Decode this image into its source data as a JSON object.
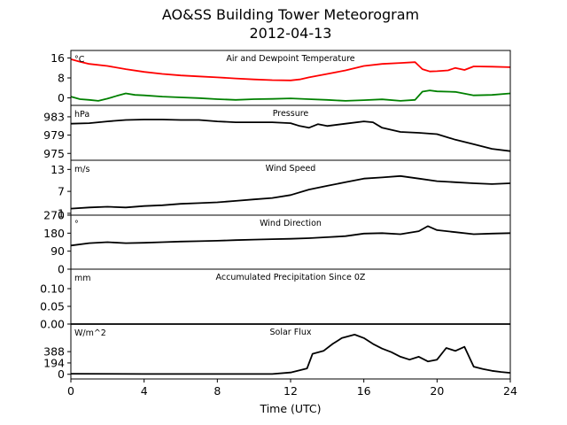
{
  "figure": {
    "title_line1": "AO&SS Building Tower Meteorogram",
    "title_line2": "2012-04-13"
  },
  "chart_data": {
    "type": "line",
    "xlabel": "Time (UTC)",
    "xlim": [
      0,
      24
    ],
    "xticks": [
      0,
      4,
      8,
      12,
      16,
      20,
      24
    ],
    "panels": [
      {
        "id": "temperature",
        "title": "Air and Dewpoint Temperature",
        "unit": "°C",
        "ylim": [
          -3,
          19
        ],
        "yticks": [
          16,
          8,
          0
        ],
        "series": [
          {
            "color": "#ff0000",
            "points": [
              [
                0,
                15.5
              ],
              [
                0.5,
                14.5
              ],
              [
                1,
                13.6
              ],
              [
                2,
                12.8
              ],
              [
                3,
                11.5
              ],
              [
                4,
                10.4
              ],
              [
                5,
                9.6
              ],
              [
                6,
                9.0
              ],
              [
                7,
                8.6
              ],
              [
                8,
                8.2
              ],
              [
                9,
                7.8
              ],
              [
                10,
                7.4
              ],
              [
                11,
                7.1
              ],
              [
                12,
                7.0
              ],
              [
                12.5,
                7.4
              ],
              [
                13,
                8.2
              ],
              [
                14,
                9.6
              ],
              [
                15,
                11.0
              ],
              [
                16,
                12.8
              ],
              [
                17,
                13.6
              ],
              [
                18,
                14.0
              ],
              [
                18.8,
                14.3
              ],
              [
                19.2,
                11.5
              ],
              [
                19.6,
                10.6
              ],
              [
                20,
                10.7
              ],
              [
                20.6,
                11.0
              ],
              [
                21,
                12.0
              ],
              [
                21.5,
                11.2
              ],
              [
                22,
                12.6
              ],
              [
                23,
                12.5
              ],
              [
                24,
                12.3
              ]
            ]
          },
          {
            "color": "#008000",
            "points": [
              [
                0,
                0.5
              ],
              [
                0.5,
                -0.5
              ],
              [
                1,
                -0.8
              ],
              [
                1.5,
                -1.2
              ],
              [
                2,
                -0.3
              ],
              [
                2.5,
                0.8
              ],
              [
                3,
                1.8
              ],
              [
                3.5,
                1.2
              ],
              [
                4,
                1.0
              ],
              [
                5,
                0.5
              ],
              [
                6,
                0.2
              ],
              [
                7,
                -0.1
              ],
              [
                8,
                -0.5
              ],
              [
                9,
                -0.8
              ],
              [
                10,
                -0.5
              ],
              [
                11,
                -0.4
              ],
              [
                12,
                -0.2
              ],
              [
                13,
                -0.5
              ],
              [
                14,
                -0.8
              ],
              [
                15,
                -1.2
              ],
              [
                16,
                -0.9
              ],
              [
                17,
                -0.6
              ],
              [
                18,
                -1.2
              ],
              [
                18.8,
                -0.8
              ],
              [
                19.2,
                2.5
              ],
              [
                19.6,
                3.0
              ],
              [
                20,
                2.6
              ],
              [
                21,
                2.4
              ],
              [
                22,
                1.0
              ],
              [
                23,
                1.2
              ],
              [
                24,
                1.8
              ]
            ]
          }
        ]
      },
      {
        "id": "pressure",
        "title": "Pressure",
        "unit": "hPa",
        "ylim": [
          973.5,
          985.5
        ],
        "yticks": [
          983,
          979,
          975
        ],
        "series": [
          {
            "color": "#000000",
            "points": [
              [
                0,
                981.5
              ],
              [
                1,
                981.6
              ],
              [
                2,
                982.0
              ],
              [
                3,
                982.3
              ],
              [
                4,
                982.4
              ],
              [
                5,
                982.4
              ],
              [
                6,
                982.3
              ],
              [
                7,
                982.3
              ],
              [
                8,
                982.0
              ],
              [
                9,
                981.8
              ],
              [
                10,
                981.8
              ],
              [
                11,
                981.8
              ],
              [
                12,
                981.6
              ],
              [
                12.5,
                981.0
              ],
              [
                13,
                980.6
              ],
              [
                13.5,
                981.4
              ],
              [
                14,
                981.0
              ],
              [
                15,
                981.5
              ],
              [
                16,
                982.0
              ],
              [
                16.5,
                981.8
              ],
              [
                17,
                980.6
              ],
              [
                18,
                979.7
              ],
              [
                19,
                979.5
              ],
              [
                20,
                979.2
              ],
              [
                21,
                978.0
              ],
              [
                22,
                977.0
              ],
              [
                23,
                976.0
              ],
              [
                24,
                975.5
              ]
            ]
          }
        ]
      },
      {
        "id": "wind_speed",
        "title": "Wind Speed",
        "unit": "m/s",
        "ylim": [
          0.5,
          15.5
        ],
        "yticks": [
          13,
          7,
          1
        ],
        "series": [
          {
            "color": "#000000",
            "points": [
              [
                0,
                2.3
              ],
              [
                1,
                2.6
              ],
              [
                2,
                2.8
              ],
              [
                3,
                2.6
              ],
              [
                4,
                3.0
              ],
              [
                5,
                3.2
              ],
              [
                6,
                3.6
              ],
              [
                7,
                3.8
              ],
              [
                8,
                4.0
              ],
              [
                9,
                4.4
              ],
              [
                10,
                4.8
              ],
              [
                11,
                5.2
              ],
              [
                12,
                6.0
              ],
              [
                13,
                7.5
              ],
              [
                14,
                8.5
              ],
              [
                15,
                9.5
              ],
              [
                16,
                10.5
              ],
              [
                17,
                10.8
              ],
              [
                18,
                11.2
              ],
              [
                19,
                10.5
              ],
              [
                20,
                9.8
              ],
              [
                21,
                9.5
              ],
              [
                22,
                9.2
              ],
              [
                23,
                9.0
              ],
              [
                24,
                9.2
              ]
            ]
          }
        ]
      },
      {
        "id": "wind_direction",
        "title": "Wind Direction",
        "unit": "°",
        "ylim": [
          0,
          270
        ],
        "yticks": [
          270,
          180,
          90,
          0
        ],
        "series": [
          {
            "color": "#000000",
            "points": [
              [
                0,
                118
              ],
              [
                1,
                130
              ],
              [
                2,
                135
              ],
              [
                3,
                130
              ],
              [
                4,
                132
              ],
              [
                5,
                135
              ],
              [
                6,
                138
              ],
              [
                7,
                140
              ],
              [
                8,
                142
              ],
              [
                9,
                145
              ],
              [
                10,
                148
              ],
              [
                11,
                150
              ],
              [
                12,
                152
              ],
              [
                13,
                155
              ],
              [
                14,
                160
              ],
              [
                15,
                165
              ],
              [
                16,
                178
              ],
              [
                17,
                180
              ],
              [
                18,
                175
              ],
              [
                19,
                190
              ],
              [
                19.5,
                215
              ],
              [
                20,
                195
              ],
              [
                21,
                185
              ],
              [
                22,
                175
              ],
              [
                23,
                178
              ],
              [
                24,
                180
              ]
            ]
          }
        ]
      },
      {
        "id": "precipitation",
        "title": "Accumulated Precipitation Since 0Z",
        "unit": "mm",
        "ylim": [
          0,
          0.155
        ],
        "yticks": [
          0.1,
          0.05,
          0.0
        ],
        "series": [
          {
            "color": "#000000",
            "points": [
              [
                0,
                0
              ],
              [
                24,
                0
              ]
            ]
          }
        ]
      },
      {
        "id": "solar_flux",
        "title": "Solar Flux",
        "unit": "W/m^2",
        "ylim": [
          -80,
          860
        ],
        "yticks": [
          388,
          194,
          0
        ],
        "series": [
          {
            "color": "#000000",
            "points": [
              [
                0,
                10
              ],
              [
                4,
                5
              ],
              [
                8,
                5
              ],
              [
                11,
                5
              ],
              [
                12,
                30
              ],
              [
                12.9,
                100
              ],
              [
                13.2,
                350
              ],
              [
                13.8,
                400
              ],
              [
                14.3,
                520
              ],
              [
                14.8,
                620
              ],
              [
                15.5,
                680
              ],
              [
                16,
                620
              ],
              [
                16.5,
                520
              ],
              [
                17,
                440
              ],
              [
                17.5,
                380
              ],
              [
                18,
                300
              ],
              [
                18.5,
                250
              ],
              [
                19,
                300
              ],
              [
                19.5,
                220
              ],
              [
                20,
                250
              ],
              [
                20.5,
                450
              ],
              [
                21,
                400
              ],
              [
                21.5,
                470
              ],
              [
                22,
                130
              ],
              [
                22.5,
                90
              ],
              [
                23,
                60
              ],
              [
                23.5,
                40
              ],
              [
                24,
                25
              ]
            ]
          }
        ]
      }
    ]
  }
}
